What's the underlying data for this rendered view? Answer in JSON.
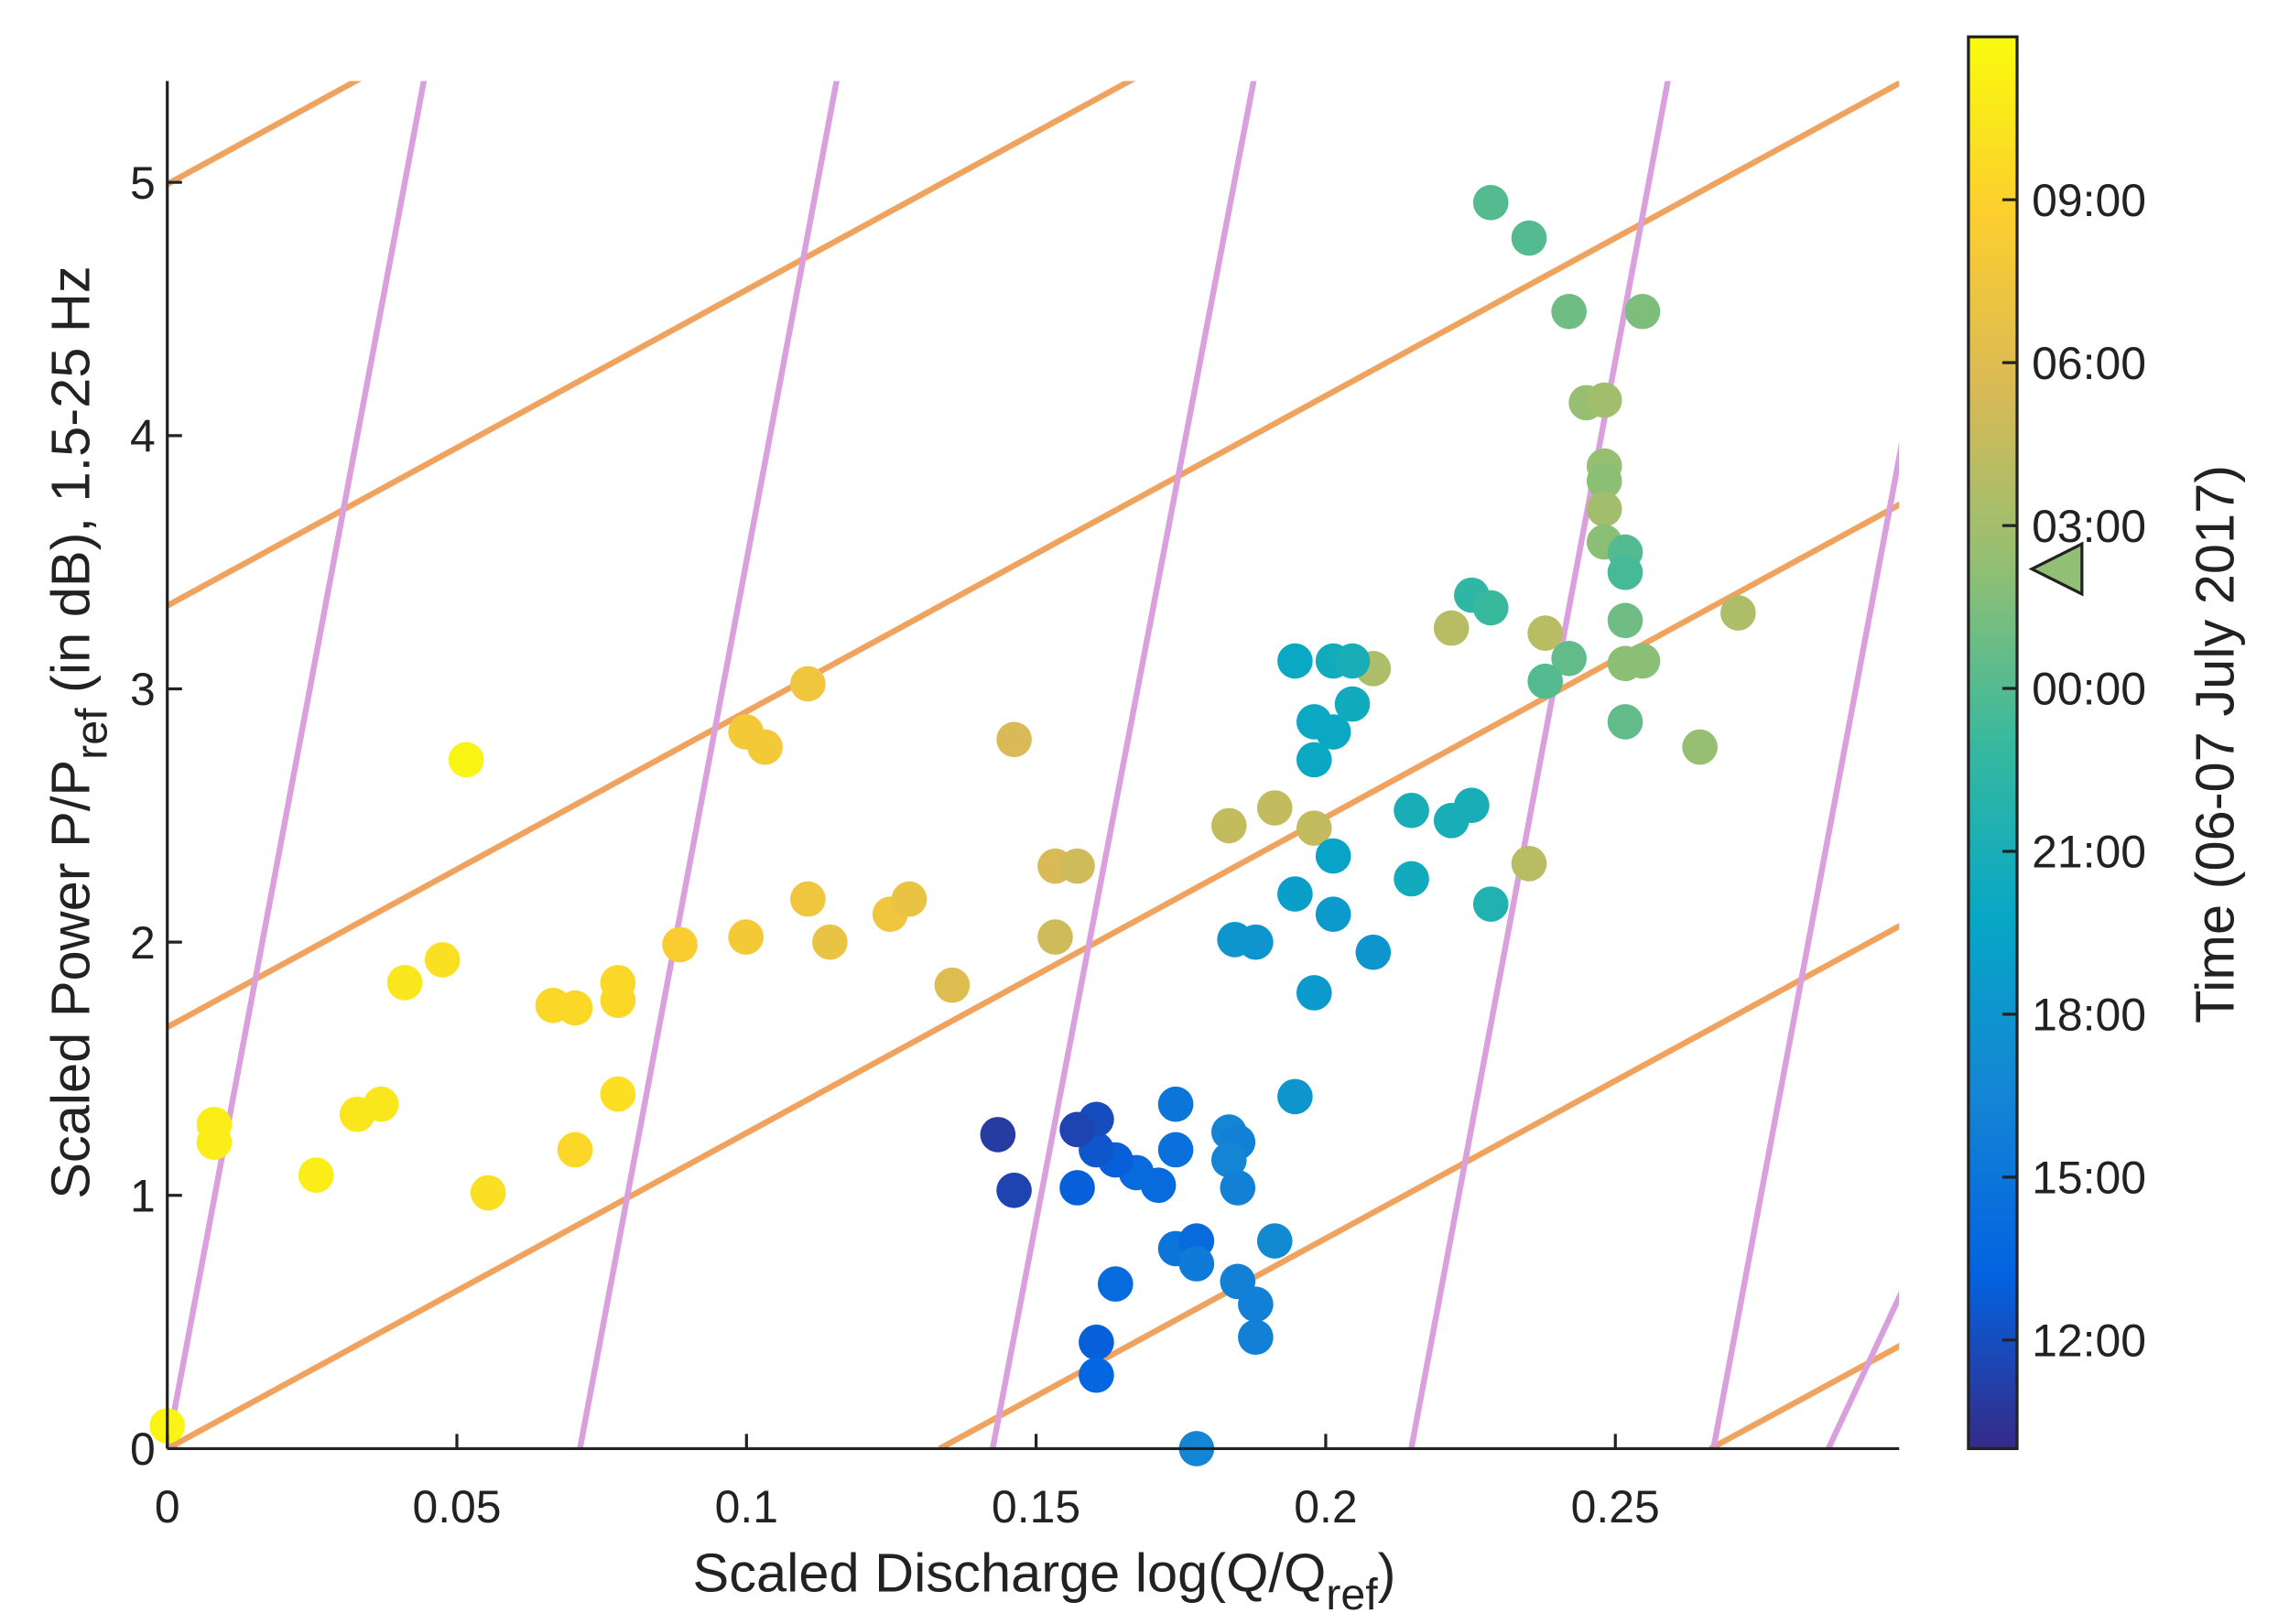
{
  "chart_data": {
    "type": "scatter",
    "xlabel": [
      "Scaled Discharge  log(Q/Q",
      "ref",
      ")"
    ],
    "ylabel": [
      "Scaled Power   P/P",
      "ref",
      "  (in dB),   1.5-25 Hz"
    ],
    "xlim": [
      0,
      0.299
    ],
    "ylim": [
      0,
      5.4
    ],
    "xticks": [
      0,
      0.05,
      0.1,
      0.15,
      0.2,
      0.25
    ],
    "yticks": [
      0,
      1,
      2,
      3,
      4,
      5
    ],
    "x": [
      0,
      0.0081,
      0.0081,
      0.0257,
      0.0328,
      0.0369,
      0.041,
      0.0475,
      0.0516,
      0.0554,
      0.0666,
      0.0704,
      0.0704,
      0.0778,
      0.0778,
      0.0778,
      0.0885,
      0.0999,
      0.0999,
      0.1032,
      0.1106,
      0.1106,
      0.1144,
      0.1248,
      0.1281,
      0.1355,
      0.1462,
      0.1533,
      0.1571,
      0.1533,
      0.1833,
      0.1912,
      0.198,
      0.2082,
      0.2217,
      0.2379,
      0.2351,
      0.2646,
      0.2712,
      0.2285,
      0.2351,
      0.242,
      0.2547,
      0.245,
      0.2481,
      0.2481,
      0.2481,
      0.2481,
      0.2481,
      0.2517,
      0.2517,
      0.2517,
      0.2517,
      0.2547,
      0.2517,
      0.242,
      0.2379,
      0.2252,
      0.2285,
      0.1947,
      0.2013,
      0.2046,
      0.198,
      0.2013,
      0.2046,
      0.198,
      0.2148,
      0.2217,
      0.2252,
      0.2148,
      0.2285,
      0.2013,
      0.1947,
      0.2013,
      0.1843,
      0.1879,
      0.2082,
      0.198,
      0.1947,
      0.1833,
      0.1848,
      0.1833,
      0.1848,
      0.1741,
      0.1741,
      0.1711,
      0.1673,
      0.1637,
      0.1604,
      0.1604,
      0.1571,
      0.1571,
      0.1434,
      0.1462,
      0.1741,
      0.1777,
      0.1777,
      0.1848,
      0.1879,
      0.1879,
      0.1912,
      0.1637,
      0.1604,
      0.1604,
      0.1777
    ],
    "y": [
      0.09,
      1.28,
      1.21,
      1.08,
      1.32,
      1.36,
      1.84,
      1.93,
      2.72,
      1.01,
      1.75,
      1.74,
      1.18,
      1.84,
      1.77,
      1.4,
      1.99,
      2.02,
      2.83,
      2.77,
      3.02,
      2.17,
      2.0,
      2.11,
      2.17,
      1.83,
      2.8,
      2.3,
      2.3,
      2.02,
      2.46,
      2.53,
      2.45,
      3.08,
      3.24,
      3.22,
      2.31,
      2.77,
      3.3,
      4.92,
      4.78,
      4.49,
      4.49,
      4.13,
      4.14,
      3.88,
      3.82,
      3.71,
      3.58,
      3.54,
      3.46,
      3.27,
      3.1,
      3.11,
      2.87,
      3.12,
      3.03,
      3.37,
      3.32,
      3.11,
      3.11,
      3.11,
      2.87,
      2.83,
      2.94,
      2.72,
      2.52,
      2.48,
      2.54,
      2.25,
      2.15,
      2.34,
      2.19,
      2.11,
      2.01,
      2.0,
      1.96,
      1.8,
      1.39,
      1.25,
      1.21,
      1.14,
      1.03,
      1.36,
      1.18,
      1.04,
      1.09,
      1.14,
      1.18,
      1.3,
      1.26,
      1.03,
      1.24,
      1.02,
      0.79,
      0.82,
      0.73,
      0.66,
      0.57,
      0.44,
      0.82,
      0.65,
      0.42,
      0.29,
      0.0
    ],
    "c": [
      35.5,
      35,
      35,
      35,
      34.5,
      34.5,
      34.5,
      34,
      35.5,
      34,
      33.5,
      33.5,
      33.5,
      33.5,
      33.5,
      34,
      32.5,
      32,
      32,
      32,
      31.5,
      31.5,
      31,
      31.5,
      31,
      30,
      29.5,
      29.5,
      29,
      29,
      28.5,
      28.5,
      28.5,
      27.5,
      28,
      28,
      28,
      26.5,
      27.5,
      24,
      24,
      25,
      25.5,
      26.5,
      27,
      26.5,
      26,
      27,
      26,
      24,
      23.5,
      25,
      26,
      26,
      24.5,
      24.5,
      24,
      22.5,
      23,
      20,
      20.5,
      21,
      20,
      20,
      20.5,
      20,
      21,
      21,
      21,
      20.5,
      21.5,
      19.5,
      19,
      18.5,
      18,
      18,
      18,
      18.5,
      18,
      16.5,
      16,
      16.5,
      16,
      15,
      14.5,
      14,
      14,
      13,
      12.5,
      12,
      11.5,
      13,
      11,
      11.5,
      15,
      14,
      15.5,
      16,
      16,
      16,
      17,
      14,
      13,
      13.5,
      16.5
    ],
    "colorbar": {
      "label": "Time (06-07 July 2017)",
      "lim": [
        10,
        36
      ],
      "ticks": [
        {
          "value": 12,
          "label": "12:00"
        },
        {
          "value": 15,
          "label": "15:00"
        },
        {
          "value": 18,
          "label": "18:00"
        },
        {
          "value": 21,
          "label": "21:00"
        },
        {
          "value": 24,
          "label": "00:00"
        },
        {
          "value": 27,
          "label": "03:00"
        },
        {
          "value": 30,
          "label": "06:00"
        },
        {
          "value": 33,
          "label": "09:00"
        }
      ],
      "colormap": [
        "#352a87",
        "#0363e1",
        "#1485d4",
        "#06a7c6",
        "#38b99e",
        "#92bf73",
        "#d9ba56",
        "#fcce2e",
        "#f9fb0e"
      ],
      "marker": 26.2
    }
  }
}
